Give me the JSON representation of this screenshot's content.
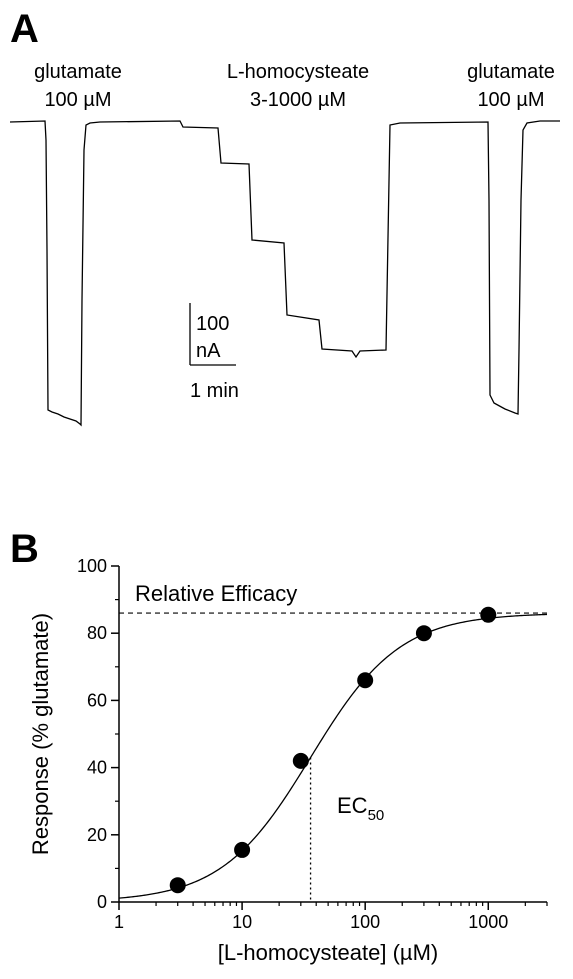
{
  "panelA": {
    "letter": "A",
    "labels": {
      "glut1_line1": "glutamate",
      "glut1_line2": "100 µM",
      "lhc_line1": "L-homocysteate",
      "lhc_line2": "3-1000 µM",
      "glut2_line1": "glutamate",
      "glut2_line2": "100 µM"
    },
    "scalebar": {
      "current_value": "100",
      "current_unit": "nA",
      "time": "1 min"
    }
  },
  "chart_data": {
    "type": "scatter",
    "panel": "B",
    "xlabel": "[L-homocysteate] (µM)",
    "ylabel": "Response (% glutamate)",
    "xscale": "log",
    "xlim": [
      1,
      3000
    ],
    "ylim": [
      0,
      100
    ],
    "xticks": [
      "1",
      "10",
      "100",
      "1000"
    ],
    "yticks": [
      "0",
      "20",
      "40",
      "60",
      "80",
      "100"
    ],
    "series": [
      {
        "x": [
          3,
          10,
          30,
          100,
          300,
          1000
        ],
        "y": [
          5,
          15.5,
          42,
          66,
          80,
          85.5
        ],
        "yerr": [
          0,
          0,
          0,
          0,
          0,
          2
        ]
      }
    ],
    "fit": {
      "curve": "Hill",
      "top": 86,
      "ec50": 36,
      "hill": 1.2
    },
    "annotations": {
      "relative_efficacy": "Relative Efficacy",
      "ec50_main": "EC",
      "ec50_sub": "50"
    },
    "grid": false
  }
}
